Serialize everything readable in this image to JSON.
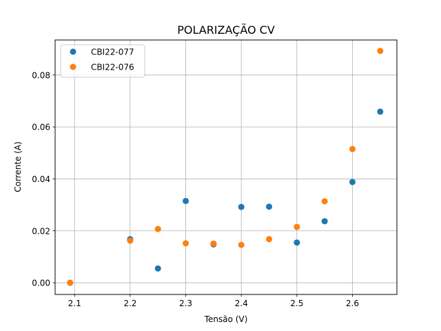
{
  "chart_data": {
    "type": "scatter",
    "title": "POLARIZAÇÃO CV",
    "xlabel": "Tensão (V)",
    "ylabel": "Corrente (A)",
    "xlim": [
      2.065,
      2.68
    ],
    "ylim": [
      -0.0045,
      0.0935
    ],
    "xticks": [
      2.1,
      2.2,
      2.3,
      2.4,
      2.5,
      2.6
    ],
    "xtick_labels": [
      "2.1",
      "2.2",
      "2.3",
      "2.4",
      "2.5",
      "2.6"
    ],
    "yticks": [
      0.0,
      0.02,
      0.04,
      0.06,
      0.08
    ],
    "ytick_labels": [
      "0.00",
      "0.02",
      "0.04",
      "0.06",
      "0.08"
    ],
    "grid": true,
    "legend_position": "top-left",
    "series": [
      {
        "name": "CBI22-077",
        "color": "#1f77b4",
        "x": [
          2.092,
          2.2,
          2.25,
          2.3,
          2.35,
          2.4,
          2.45,
          2.5,
          2.55,
          2.6,
          2.65
        ],
        "y": [
          0.0,
          0.0168,
          0.0055,
          0.0315,
          0.0148,
          0.0292,
          0.0293,
          0.0155,
          0.0237,
          0.0388,
          0.0659
        ]
      },
      {
        "name": "CBI22-076",
        "color": "#ff7f0e",
        "x": [
          2.092,
          2.2,
          2.25,
          2.3,
          2.35,
          2.4,
          2.45,
          2.5,
          2.55,
          2.6,
          2.65
        ],
        "y": [
          0.0,
          0.0162,
          0.0207,
          0.0152,
          0.0151,
          0.0146,
          0.0168,
          0.0215,
          0.0314,
          0.0515,
          0.0893
        ]
      }
    ]
  }
}
